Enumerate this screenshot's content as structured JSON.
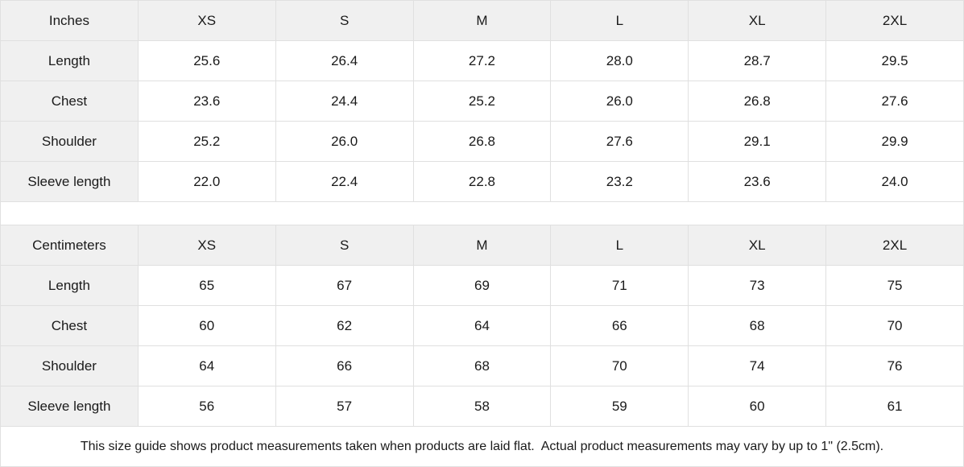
{
  "chart_data": [
    {
      "type": "table",
      "title": "Inches",
      "columns": [
        "XS",
        "S",
        "M",
        "L",
        "XL",
        "2XL"
      ],
      "rows": [
        {
          "label": "Length",
          "values": [
            "25.6",
            "26.4",
            "27.2",
            "28.0",
            "28.7",
            "29.5"
          ]
        },
        {
          "label": "Chest",
          "values": [
            "23.6",
            "24.4",
            "25.2",
            "26.0",
            "26.8",
            "27.6"
          ]
        },
        {
          "label": "Shoulder",
          "values": [
            "25.2",
            "26.0",
            "26.8",
            "27.6",
            "29.1",
            "29.9"
          ]
        },
        {
          "label": "Sleeve length",
          "values": [
            "22.0",
            "22.4",
            "22.8",
            "23.2",
            "23.6",
            "24.0"
          ]
        }
      ]
    },
    {
      "type": "table",
      "title": "Centimeters",
      "columns": [
        "XS",
        "S",
        "M",
        "L",
        "XL",
        "2XL"
      ],
      "rows": [
        {
          "label": "Length",
          "values": [
            "65",
            "67",
            "69",
            "71",
            "73",
            "75"
          ]
        },
        {
          "label": "Chest",
          "values": [
            "60",
            "62",
            "64",
            "66",
            "68",
            "70"
          ]
        },
        {
          "label": "Shoulder",
          "values": [
            "64",
            "66",
            "68",
            "70",
            "74",
            "76"
          ]
        },
        {
          "label": "Sleeve length",
          "values": [
            "56",
            "57",
            "58",
            "59",
            "60",
            "61"
          ]
        }
      ]
    }
  ],
  "footer": {
    "note": "This size guide shows product measurements taken when products are laid flat.  Actual product measurements may vary by up to 1\" (2.5cm)."
  },
  "colors": {
    "header_bg": "#f0f0f0",
    "border": "#e0e0e0",
    "text": "#1a1a1a",
    "background": "#ffffff"
  }
}
